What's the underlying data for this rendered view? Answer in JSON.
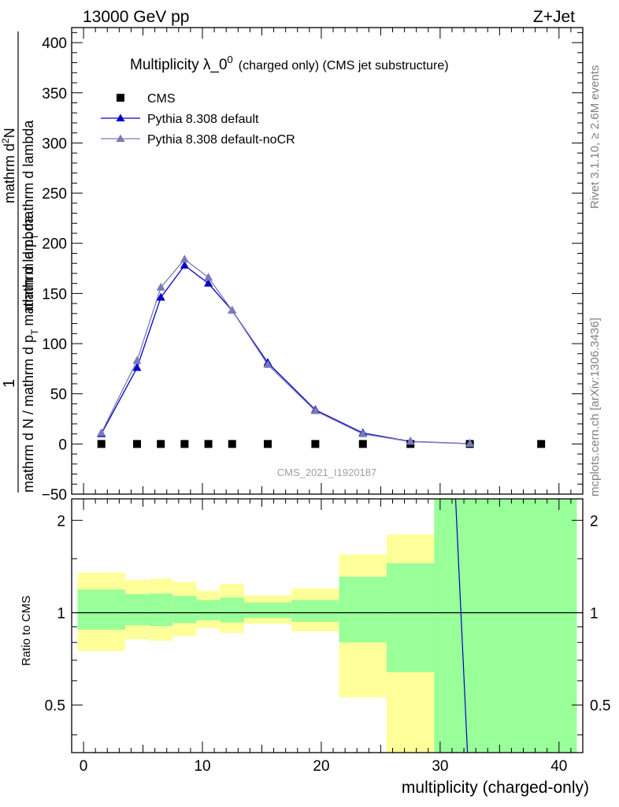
{
  "header": {
    "energy_label": "13000 GeV pp",
    "process_label": "Z+Jet"
  },
  "side_labels": {
    "rivet": "Rivet 3.1.10, ≥ 2.6M events",
    "mcplots": "mcplots.cern.ch [arXiv:1306.3436]"
  },
  "chart_data": [
    {
      "type": "line",
      "title_main": "Multiplicity λ_0",
      "title_sup": "0",
      "title_rest": "(charged only) (CMS jet substructure)",
      "watermark": "CMS_2021_I1920187",
      "ylabel_top": "1",
      "ylabel_bottom": "mathrm d N / mathrm d p",
      "ylabel_sub": "T",
      "ylabel_bottom2": "mathrm d lambda",
      "ylabel_numer_part1": "mathrm d",
      "ylabel_numer_sup": "2",
      "ylabel_numer_part2": "N",
      "ylabel_denom_part1": "mathrm d p",
      "ylabel_denom_sub": "T",
      "ylabel_denom_part2": "mathrm d lambda",
      "xlim": [
        -1,
        42
      ],
      "ylim": [
        -50,
        415
      ],
      "yticks": [
        "−50",
        "0",
        "50",
        "100",
        "150",
        "200",
        "250",
        "300",
        "350",
        "400"
      ],
      "ytick_values": [
        -50,
        0,
        50,
        100,
        150,
        200,
        250,
        300,
        350,
        400
      ],
      "legend_position": "top-left",
      "series": [
        {
          "name": "CMS",
          "marker": "square",
          "color": "#000000",
          "x": [
            1.5,
            4.5,
            6.5,
            8.5,
            10.5,
            12.5,
            15.5,
            19.5,
            23.5,
            27.5,
            32.5,
            38.5
          ],
          "y": [
            0,
            0,
            0,
            0,
            0,
            0,
            0,
            0,
            0,
            0,
            0,
            0
          ]
        },
        {
          "name": "Pythia 8.308 default",
          "marker": "triangle",
          "color": "#0000cc",
          "x": [
            1.5,
            4.5,
            6.5,
            8.5,
            10.5,
            12.5,
            15.5,
            19.5,
            23.5,
            27.5,
            32.5
          ],
          "y": [
            10,
            76,
            146,
            178,
            160,
            133,
            81,
            34,
            11,
            2.5,
            0.3
          ]
        },
        {
          "name": "Pythia 8.308 default-noCR",
          "marker": "triangle",
          "color": "#7a7ab8",
          "x": [
            1.5,
            4.5,
            6.5,
            8.5,
            10.5,
            12.5,
            15.5,
            19.5,
            23.5,
            27.5,
            32.5
          ],
          "y": [
            11,
            83,
            156,
            184,
            166,
            133,
            79,
            33,
            10,
            2.3,
            0.3
          ]
        }
      ]
    },
    {
      "type": "line",
      "ylabel": "Ratio to CMS",
      "xlabel": "multiplicity (charged-only)",
      "xlim": [
        -1,
        42
      ],
      "ylim": [
        0.35,
        2.35
      ],
      "xticks": [
        "0",
        "10",
        "20",
        "30",
        "40"
      ],
      "xtick_values": [
        0,
        10,
        20,
        30,
        40
      ],
      "yticks": [
        "0.5",
        "1",
        "2"
      ],
      "ytick_values": [
        0.5,
        1,
        2
      ],
      "reference_line": 1,
      "bands": {
        "edges": [
          -0.5,
          3.5,
          5.5,
          7.5,
          9.5,
          11.5,
          13.5,
          17.5,
          21.5,
          25.5,
          29.5,
          41.5
        ],
        "yellow_low": [
          0.75,
          0.82,
          0.81,
          0.84,
          0.89,
          0.86,
          0.92,
          0.87,
          0.53,
          0.35,
          0.35
        ],
        "yellow_high": [
          1.35,
          1.28,
          1.29,
          1.26,
          1.18,
          1.24,
          1.14,
          1.2,
          1.55,
          1.8,
          2.35
        ],
        "green_low": [
          0.88,
          0.91,
          0.905,
          0.925,
          0.945,
          0.93,
          0.96,
          0.935,
          0.8,
          0.64,
          0.35
        ],
        "green_high": [
          1.19,
          1.15,
          1.155,
          1.135,
          1.1,
          1.12,
          1.08,
          1.1,
          1.31,
          1.45,
          2.35
        ]
      },
      "series": [
        {
          "name": "Pythia 8.308 default",
          "color": "#0000cc",
          "x": [
            31.3,
            32.3
          ],
          "y": [
            2.35,
            0.35
          ]
        }
      ]
    }
  ]
}
